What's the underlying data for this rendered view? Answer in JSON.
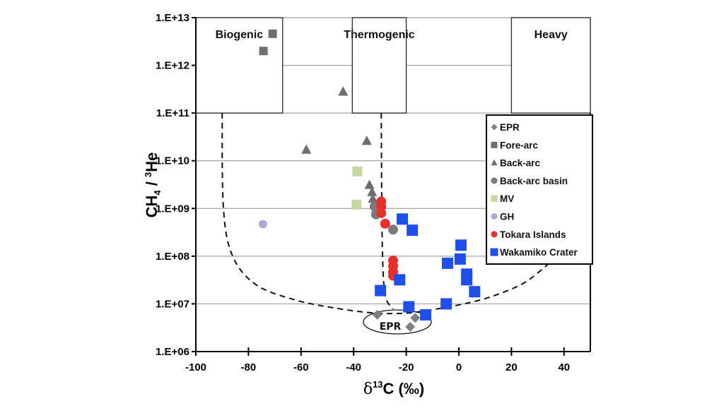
{
  "chart_data": {
    "type": "scatter",
    "title": "",
    "xlabel": "δ13C (‰)",
    "xlabel_parts": {
      "delta": "δ",
      "sup": "13",
      "rest": "C (‰)"
    },
    "ylabel": "CH4 / 3He",
    "ylabel_parts": {
      "a": "CH",
      "sub": "4",
      "b": " / ",
      "sup": "3",
      "c": "He"
    },
    "xlim": [
      -100,
      50
    ],
    "ylim": [
      1000000.0,
      10000000000000.0
    ],
    "yscale": "log",
    "x_ticks": [
      -100,
      -80,
      -60,
      -40,
      -20,
      0,
      20,
      40
    ],
    "x_tick_labels": [
      "-100",
      "-80",
      "-60",
      "-40",
      "-20",
      "0",
      "20",
      "40"
    ],
    "y_ticks": [
      1000000.0,
      10000000.0,
      100000000.0,
      1000000000.0,
      10000000000.0,
      100000000000.0,
      1000000000000.0,
      10000000000000.0
    ],
    "y_tick_labels": [
      "1.E+06",
      "1.E+07",
      "1.E+08",
      "1.E+09",
      "1.E+10",
      "1.E+11",
      "1.E+12",
      "1.E+13"
    ],
    "grid": "horizontal",
    "legend_position": "right",
    "regions": [
      {
        "label": "Biogenic",
        "x_range": [
          -100,
          -67
        ],
        "y_range": [
          100000000000.0,
          10000000000000.0
        ]
      },
      {
        "label": "Thermogenic",
        "x_range": [
          -40.5,
          -20
        ],
        "y_range": [
          100000000000.0,
          10000000000000.0
        ]
      },
      {
        "label": "Heavy",
        "x_range": [
          20,
          50
        ],
        "y_range": [
          100000000000.0,
          10000000000000.0
        ]
      }
    ],
    "annotation": "EPR",
    "series": [
      {
        "name": "EPR",
        "marker": "diamond",
        "color": "#808080",
        "points": [
          [
            -31,
            5900000.0
          ],
          [
            -16.6,
            5100000.0
          ],
          [
            -18.5,
            3300000.0
          ]
        ]
      },
      {
        "name": "Fore-arc",
        "marker": "square",
        "color": "#6e6e6e",
        "points": [
          [
            -70.8,
            4600000000000.0
          ],
          [
            -74.3,
            2000000000000.0
          ]
        ]
      },
      {
        "name": "Back-arc",
        "marker": "triangle",
        "color": "#6e6e6e",
        "points": [
          [
            -58,
            17000000000.0
          ],
          [
            -35,
            26000000000.0
          ],
          [
            -44,
            280000000000.0
          ],
          [
            -34,
            3100000000.0
          ],
          [
            -33,
            2200000000.0
          ],
          [
            -32.7,
            1600000000.0
          ]
        ]
      },
      {
        "name": "Back-arc basin",
        "marker": "circle",
        "color": "#7a7a7a",
        "points": [
          [
            -32,
            1100000000.0
          ],
          [
            -31.5,
            750000000.0
          ],
          [
            -25,
            360000000.0
          ]
        ]
      },
      {
        "name": "MV",
        "marker": "square",
        "color": "#c4d9a0",
        "points": [
          [
            -38.6,
            6000000000.0
          ],
          [
            -38.9,
            1200000000.0
          ]
        ]
      },
      {
        "name": "GH",
        "marker": "circle",
        "color": "#b3a7d4",
        "points": [
          [
            -74.5,
            470000000.0
          ]
        ]
      },
      {
        "name": "Tokara Islands",
        "marker": "circle",
        "color": "#e8302a",
        "points": [
          [
            -29.5,
            1400000000.0
          ],
          [
            -29.5,
            1100000000.0
          ],
          [
            -29.5,
            800000000.0
          ],
          [
            -28,
            480000000.0
          ],
          [
            -25,
            81000000.0
          ],
          [
            -25,
            62000000.0
          ],
          [
            -25,
            47000000.0
          ],
          [
            -25,
            39000000.0
          ]
        ]
      },
      {
        "name": "Wakamiko Crater",
        "marker": "square",
        "color": "#1f4fe8",
        "points": [
          [
            -21.5,
            600000000.0
          ],
          [
            -17.7,
            350000000.0
          ],
          [
            -22.5,
            32000000.0
          ],
          [
            -29.8,
            19000000.0
          ],
          [
            -19,
            8700000.0
          ],
          [
            -12.6,
            5900000.0
          ],
          [
            -4.8,
            10000000.0
          ],
          [
            -4.3,
            71000000.0
          ],
          [
            0.8,
            170000000.0
          ],
          [
            0.5,
            87000000.0
          ],
          [
            3,
            42000000.0
          ],
          [
            3,
            32000000.0
          ],
          [
            6,
            18000000.0
          ]
        ]
      }
    ],
    "boundary_curves": [
      {
        "name": "mixing-envelope",
        "style": "dashed",
        "points": [
          [
            -90,
            100000000000.0
          ],
          [
            -89.5,
            1000000000.0
          ],
          [
            -86,
            100000000.0
          ],
          [
            -77,
            25000000.0
          ],
          [
            -62,
            12000000.0
          ],
          [
            -46,
            8000000.0
          ],
          [
            -33,
            6500000.0
          ],
          [
            -22,
            6300000.0
          ],
          [
            -14,
            7000000.0
          ],
          [
            0,
            9500000.0
          ],
          [
            12,
            14000000.0
          ],
          [
            24,
            26000000.0
          ],
          [
            32,
            55000000.0
          ],
          [
            36,
            90000000.0
          ]
        ]
      },
      {
        "name": "thermogenic-boundary",
        "style": "dashed",
        "points": [
          [
            -29.5,
            100000000000.0
          ],
          [
            -29.3,
            1000000000.0
          ],
          [
            -29,
            100000000.0
          ],
          [
            -28.5,
            25000000.0
          ],
          [
            -27.5,
            12000000.0
          ],
          [
            -25,
            7800000.0
          ]
        ]
      }
    ]
  }
}
